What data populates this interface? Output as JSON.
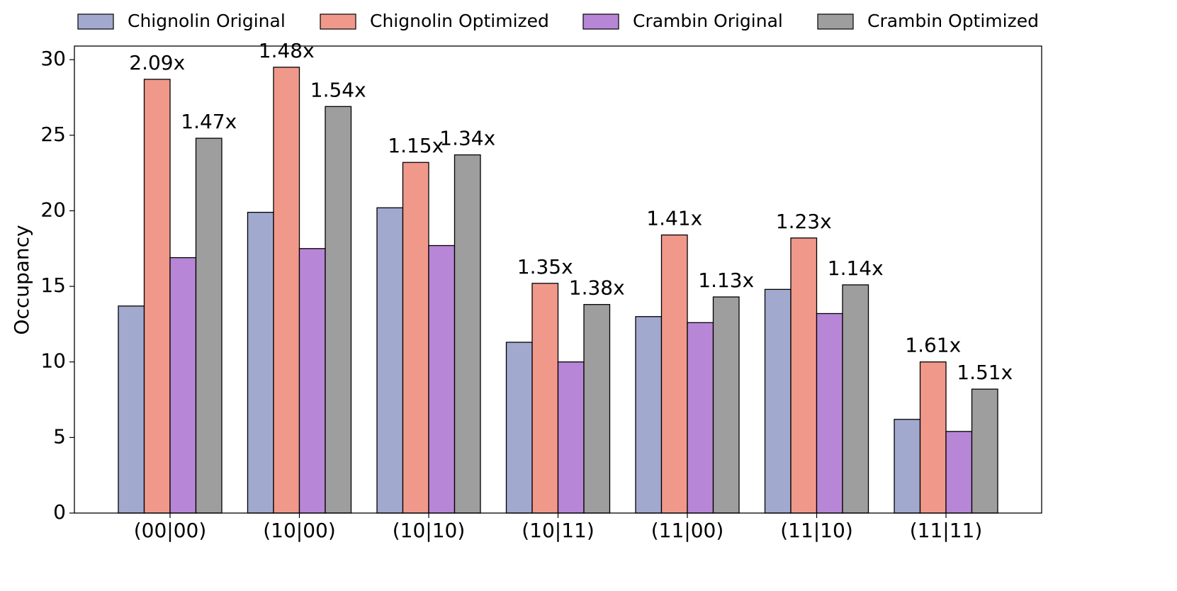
{
  "chart_data": {
    "type": "bar",
    "y_label": "Occupancy",
    "categories": [
      "(00|00)",
      "(10|00)",
      "(10|10)",
      "(10|11)",
      "(11|00)",
      "(11|10)",
      "(11|11)"
    ],
    "series": [
      {
        "name": "Chignolin Original",
        "color": "#a2a9cf",
        "values": [
          13.7,
          19.9,
          20.2,
          11.3,
          13.0,
          14.8,
          6.2
        ]
      },
      {
        "name": "Chignolin Optimized",
        "color": "#f0998b",
        "values": [
          28.7,
          29.5,
          23.2,
          15.2,
          18.4,
          18.2,
          10.0
        ],
        "annotations": [
          "2.09x",
          "1.48x",
          "1.15x",
          "1.35x",
          "1.41x",
          "1.23x",
          "1.61x"
        ]
      },
      {
        "name": "Crambin Original",
        "color": "#b886d6",
        "values": [
          16.9,
          17.5,
          17.7,
          10.0,
          12.6,
          13.2,
          5.4
        ]
      },
      {
        "name": "Crambin Optimized",
        "color": "#9e9e9e",
        "values": [
          24.8,
          26.9,
          23.7,
          13.8,
          14.3,
          15.1,
          8.2
        ],
        "annotations": [
          "1.47x",
          "1.54x",
          "1.34x",
          "1.38x",
          "1.13x",
          "1.14x",
          "1.51x"
        ]
      }
    ],
    "ylim": [
      0,
      30.9
    ],
    "yticks": [
      0,
      5,
      10,
      15,
      20,
      25,
      30
    ],
    "grid": false
  }
}
